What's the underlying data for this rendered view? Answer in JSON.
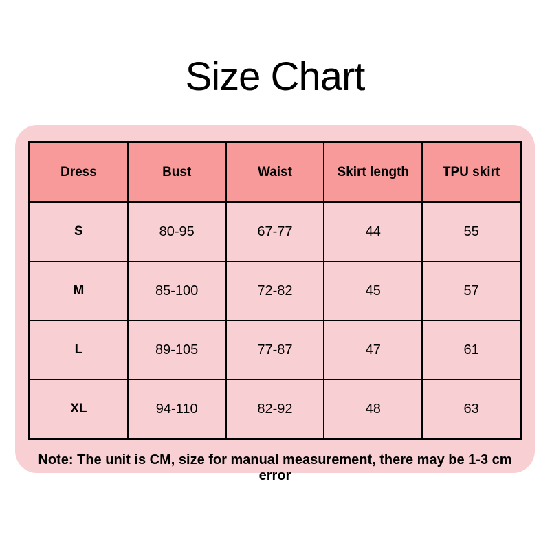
{
  "title": "Size Chart",
  "colors": {
    "page_background": "#ffffff",
    "panel_background": "#f8cfd2",
    "header_background": "#f89a9a",
    "cell_background": "#f8cfd2",
    "border": "#000000",
    "text": "#000000"
  },
  "table": {
    "columns": [
      "Dress",
      "Bust",
      "Waist",
      "Skirt length",
      "TPU skirt"
    ],
    "rows": [
      [
        "S",
        "80-95",
        "67-77",
        "44",
        "55"
      ],
      [
        "M",
        "85-100",
        "72-82",
        "45",
        "57"
      ],
      [
        "L",
        "89-105",
        "77-87",
        "47",
        "61"
      ],
      [
        "XL",
        "94-110",
        "82-92",
        "48",
        "63"
      ]
    ]
  },
  "note": "Note: The unit is CM, size for manual measurement, there may be 1-3 cm error",
  "chart_data": {
    "type": "table",
    "title": "Size Chart",
    "columns": [
      "Dress",
      "Bust",
      "Waist",
      "Skirt length",
      "TPU skirt"
    ],
    "rows": [
      [
        "S",
        "80-95",
        "67-77",
        "44",
        "55"
      ],
      [
        "M",
        "85-100",
        "72-82",
        "45",
        "57"
      ],
      [
        "L",
        "89-105",
        "77-87",
        "47",
        "61"
      ],
      [
        "XL",
        "94-110",
        "82-92",
        "48",
        "63"
      ]
    ],
    "units": "CM",
    "note": "Note: The unit is CM, size for manual measurement, there may be 1-3 cm error"
  }
}
